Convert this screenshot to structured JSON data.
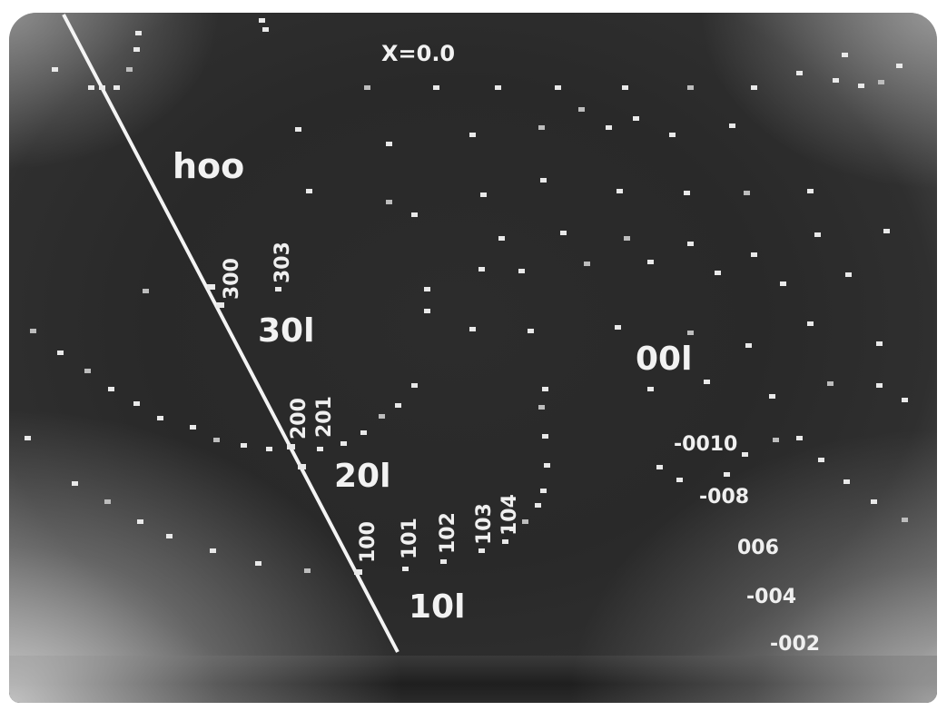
{
  "photo": {
    "description_color_fg": "#efefef",
    "description_color_bg": "#2b2b2b"
  },
  "annotations": {
    "chi": "X=0.0",
    "h00": "hoo",
    "row_30l": "30l",
    "row_20l": "20l",
    "row_10l": "10l",
    "row_00l": "00l"
  },
  "reflection_labels": {
    "r300": "300",
    "r303": "303",
    "r200": "200",
    "r201": "201",
    "r100": "100",
    "r101": "101",
    "r102": "102",
    "r103": "103",
    "r104": "104",
    "r0010": "-0010",
    "r008": "-008",
    "r006": "006",
    "r004": "-004",
    "r002": "-002"
  }
}
